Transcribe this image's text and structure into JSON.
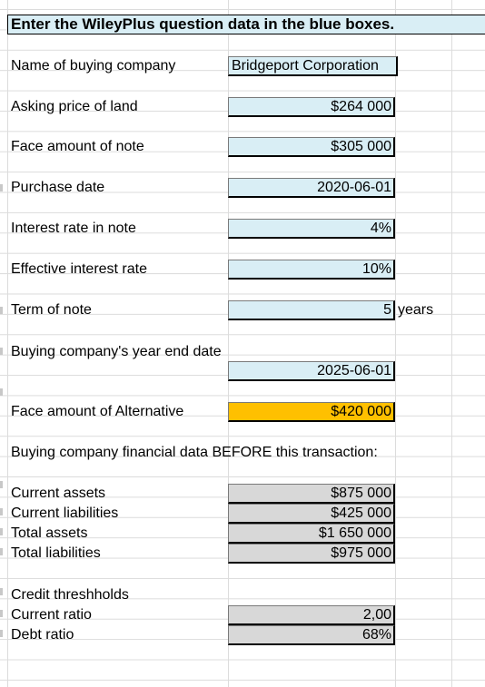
{
  "header": {
    "instruction": "Enter the WileyPlus question data in the blue boxes."
  },
  "inputs": {
    "company_label": "Name of buying company",
    "company_value": "Bridgeport Corporation",
    "asking_price_label": "Asking price of land",
    "asking_price_value": "$264 000",
    "face_amount_label": "Face amount of note",
    "face_amount_value": "$305 000",
    "purchase_date_label": "Purchase date",
    "purchase_date_value": "2020-06-01",
    "interest_rate_label": "Interest rate in note",
    "interest_rate_value": "4%",
    "effective_rate_label": "Effective interest rate",
    "effective_rate_value": "10%",
    "term_label": "Term of note",
    "term_value": "5",
    "term_unit": "years",
    "year_end_label": "Buying company's year end date",
    "year_end_value": "2025-06-01",
    "alternative_label": "Face amount of Alternative",
    "alternative_value": "$420 000"
  },
  "financial": {
    "section_title": "Buying company financial data BEFORE this transaction:",
    "current_assets_label": "Current assets",
    "current_assets_value": "$875 000",
    "current_liabilities_label": "Current liabilities",
    "current_liabilities_value": "$425 000",
    "total_assets_label": "Total assets",
    "total_assets_value": "$1 650 000",
    "total_liabilities_label": "Total liabilities",
    "total_liabilities_value": "$975 000"
  },
  "credit": {
    "section_title": "Credit threshholds",
    "current_ratio_label": "Current ratio",
    "current_ratio_value": "2,00",
    "debt_ratio_label": "Debt ratio",
    "debt_ratio_value": "68%"
  },
  "colors": {
    "input_blue": "#d9eef5",
    "highlight_orange": "#ffc000",
    "computed_gray": "#d8d8d8"
  }
}
